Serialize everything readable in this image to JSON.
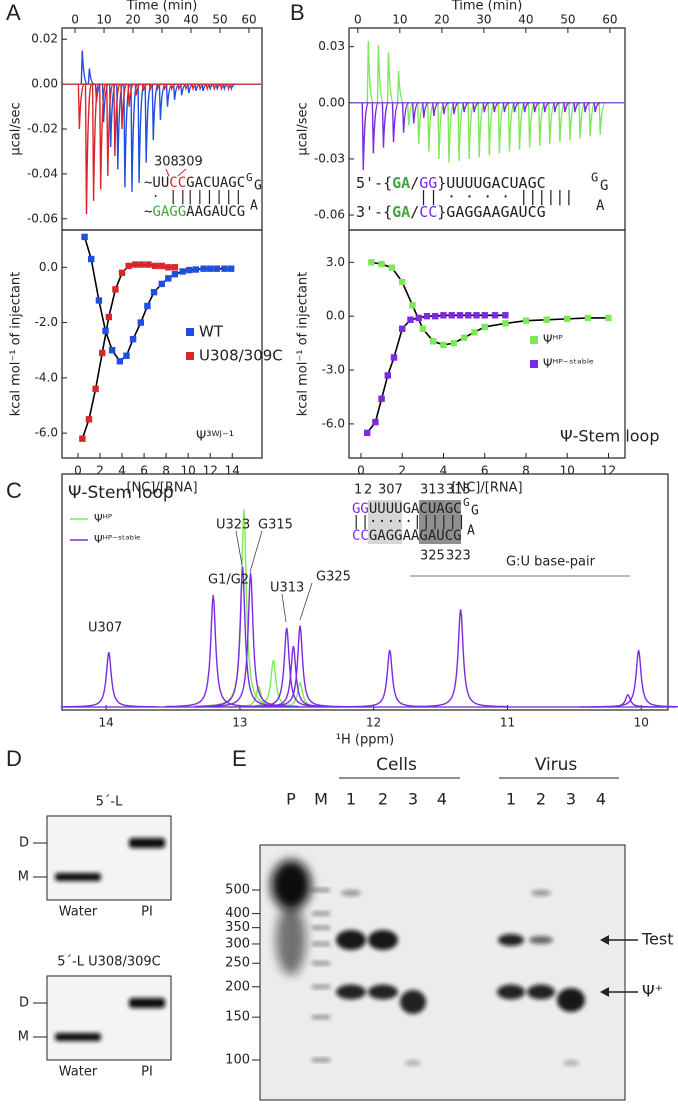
{
  "panel_labels": [
    "A",
    "B",
    "C",
    "D",
    "E"
  ],
  "chart_data": [
    {
      "type": "spikes",
      "xlabel": "Time (min)",
      "ylabel": "μcal/sec",
      "xlim": [
        -4.5,
        64.5
      ],
      "ylim": [
        -0.065,
        0.025
      ],
      "xticks": [
        0,
        10,
        20,
        30,
        40,
        50,
        60
      ],
      "yticks": [
        0.02,
        {
          "value": 0,
          "label": "0.00"
        },
        -0.02,
        -0.04,
        -0.06
      ],
      "series": [
        {
          "color": "#1f4fe0",
          "x": [
            2.5,
            4.95,
            7.4,
            9.85,
            12.3,
            14.75,
            17.2,
            19.65,
            22.1,
            24.55,
            27,
            29.45,
            31.9,
            34.35,
            36.8,
            39.25,
            41.7,
            44.15,
            46.6,
            49.05,
            51.5,
            53.95
          ],
          "values": [
            0.015,
            0.007,
            -0.008,
            -0.017,
            -0.028,
            -0.038,
            -0.046,
            -0.048,
            -0.044,
            -0.035,
            -0.025,
            -0.016,
            -0.01,
            -0.007,
            -0.005,
            -0.004,
            -0.003,
            -0.003,
            -0.002,
            -0.002,
            -0.002,
            -0.002
          ]
        },
        {
          "color": "#d8262b",
          "x": [
            1.5,
            3.95,
            6.4,
            8.85,
            11.3,
            13.75,
            16.2,
            18.65,
            21.1,
            23.55,
            26,
            28.45,
            30.9,
            33.35,
            35.8,
            38.25,
            40.7,
            43.15,
            45.6,
            48.05,
            50.5,
            52.95
          ],
          "values": [
            -0.02,
            -0.058,
            -0.052,
            -0.047,
            -0.041,
            -0.032,
            -0.02,
            -0.01,
            -0.005,
            -0.003,
            -0.002,
            -0.002,
            -0.002,
            -0.002,
            -0.002,
            -0.002,
            -0.002,
            -0.002,
            -0.002,
            -0.002,
            -0.002,
            -0.002
          ]
        }
      ]
    },
    {
      "type": "scatter",
      "xlabel": "[NC]/[RNA]",
      "ylabel": "kcal mol⁻¹ of injectant",
      "note": "Ψ³ᵂᴶ⁻¹",
      "marker": "square",
      "fit_color": "#000000",
      "xlim": [
        -1.45,
        16.7
      ],
      "ylim": [
        -6.9,
        1.35
      ],
      "xticks": [
        0,
        2,
        4,
        6,
        8,
        10,
        12,
        14
      ],
      "yticks": [
        {
          "value": 0,
          "label": "0.0"
        },
        {
          "value": -2,
          "label": "-2.0"
        },
        {
          "value": -4,
          "label": "-4.0"
        },
        {
          "value": -6,
          "label": "-6.0"
        }
      ],
      "series": [
        {
          "name": "WT",
          "color": "#1f4fe0",
          "x": [
            0.6,
            1.2,
            1.9,
            2.5,
            3.1,
            3.8,
            4.4,
            5.0,
            5.7,
            6.3,
            6.9,
            7.6,
            8.2,
            8.8,
            9.5,
            10.1,
            10.7,
            11.4,
            12.0,
            12.6,
            13.3,
            13.9
          ],
          "values": [
            1.1,
            0.3,
            -1.2,
            -2.3,
            -3.0,
            -3.4,
            -3.2,
            -2.6,
            -2.0,
            -1.4,
            -0.9,
            -0.6,
            -0.4,
            -0.25,
            -0.15,
            -0.1,
            -0.08,
            -0.05,
            -0.05,
            -0.05,
            -0.05,
            -0.05
          ]
        },
        {
          "name": "U308/309C",
          "color": "#d8262b",
          "x": [
            0.4,
            1.0,
            1.6,
            2.2,
            2.8,
            3.4,
            4.0,
            4.6,
            5.2,
            5.8,
            6.4,
            7.0,
            7.6,
            8.2,
            8.8
          ],
          "values": [
            -6.2,
            -5.5,
            -4.4,
            -3.1,
            -1.8,
            -0.8,
            -0.2,
            0.05,
            0.1,
            0.1,
            0.1,
            0.05,
            0.05,
            0,
            0
          ]
        }
      ]
    },
    {
      "type": "spikes",
      "xlabel": "Time (min)",
      "ylabel": "μcal/sec",
      "xlim": [
        -2.1,
        63.6
      ],
      "ylim": [
        -0.068,
        0.04
      ],
      "xticks": [
        0,
        10,
        20,
        30,
        40,
        50,
        60
      ],
      "yticks": [
        0.03,
        {
          "value": 0,
          "label": "0.00"
        },
        -0.03,
        -0.06
      ],
      "series": [
        {
          "color": "#7ee85a",
          "x": [
            2.5,
            4.9,
            7.3,
            9.7,
            12.1,
            14.5,
            16.9,
            19.3,
            21.7,
            24.1,
            26.5,
            28.9,
            31.3,
            33.7,
            36.1,
            38.5,
            40.9,
            43.3,
            45.7,
            48.1,
            50.5,
            52.9,
            55.3,
            57.7
          ],
          "values": [
            0.033,
            0.031,
            0.027,
            0.017,
            -0.012,
            -0.022,
            -0.026,
            -0.03,
            -0.032,
            -0.031,
            -0.03,
            -0.029,
            -0.028,
            -0.027,
            -0.026,
            -0.025,
            -0.024,
            -0.023,
            -0.022,
            -0.021,
            -0.02,
            -0.019,
            -0.018,
            -0.017
          ]
        },
        {
          "color": "#7a2be2",
          "x": [
            1.3,
            3.7,
            6.1,
            8.5,
            10.9,
            13.3,
            15.7,
            18.1,
            20.5,
            22.9,
            25.3,
            27.7,
            30.1,
            32.5,
            34.9,
            37.3,
            39.7,
            42.1,
            44.5,
            46.9,
            49.3,
            51.7,
            54.1,
            56.5
          ],
          "values": [
            -0.036,
            -0.027,
            -0.024,
            -0.021,
            -0.016,
            -0.011,
            -0.008,
            -0.007,
            -0.006,
            -0.006,
            -0.005,
            -0.005,
            -0.005,
            -0.005,
            -0.005,
            -0.005,
            -0.005,
            -0.005,
            -0.005,
            -0.005,
            -0.005,
            -0.005,
            -0.005,
            -0.005
          ]
        }
      ]
    },
    {
      "type": "scatter",
      "xlabel": "[NC]/[RNA]",
      "ylabel": "kcal mol⁻¹ of injectant",
      "note": "Ψ-Stem loop",
      "marker": "square",
      "fit_color": "#000000",
      "xlim": [
        -0.58,
        12.8
      ],
      "ylim": [
        -7.9,
        4.8
      ],
      "xticks": [
        0,
        2,
        4,
        6,
        8,
        10,
        12
      ],
      "yticks": [
        {
          "value": 3,
          "label": "3.0"
        },
        {
          "value": 0,
          "label": "0.0"
        },
        {
          "value": -3,
          "label": "-3.0"
        },
        {
          "value": -6,
          "label": "-6.0"
        }
      ],
      "series": [
        {
          "name": "Ψᴴᴾ",
          "color": "#7ee85a",
          "x": [
            0.5,
            1.0,
            1.5,
            2.0,
            2.5,
            3.0,
            3.5,
            4.0,
            4.5,
            5.0,
            5.5,
            6.0,
            7.0,
            8.0,
            9.0,
            10.0,
            11.0,
            12.0
          ],
          "values": [
            3.0,
            2.9,
            2.7,
            1.9,
            0.6,
            -0.7,
            -1.4,
            -1.6,
            -1.5,
            -1.2,
            -0.9,
            -0.6,
            -0.4,
            -0.25,
            -0.2,
            -0.15,
            -0.1,
            -0.1
          ]
        },
        {
          "name": "Ψᴴᴾ⁻ˢᵗᵃᵇˡᵉ",
          "color": "#7a2be2",
          "x": [
            0.3,
            0.7,
            1.0,
            1.3,
            1.6,
            2.0,
            2.4,
            2.8,
            3.2,
            3.6,
            4.0,
            4.4,
            4.8,
            5.2,
            5.6,
            6.0,
            6.5,
            7.0
          ],
          "values": [
            -6.5,
            -5.9,
            -4.6,
            -3.3,
            -2.3,
            -0.7,
            -0.2,
            -0.1,
            0,
            0,
            0.05,
            0.05,
            0.05,
            0.05,
            0.05,
            0.05,
            0.05,
            0.05
          ]
        }
      ]
    },
    {
      "type": "spectrum",
      "title": "Ψ-Stem loop",
      "xlabel": "¹H (ppm)",
      "xlim": [
        14.33,
        9.8
      ],
      "ylim": [
        0,
        116
      ],
      "xticks": [
        14,
        13,
        12,
        11,
        10
      ],
      "series": [
        {
          "name": "Ψᴴᴾ",
          "color": "#7ee85a",
          "x": [
            12.97,
            12.86,
            12.75,
            12.55
          ],
          "values": [
            97,
            10,
            23,
            12
          ]
        },
        {
          "name": "Ψᴴᴾ⁻ˢᵗᵃᵇˡᵉ",
          "color": "#7a2be2",
          "x": [
            13.98,
            13.2,
            12.98,
            12.92,
            12.65,
            12.6,
            12.55,
            11.88,
            11.35,
            10.1,
            10.02
          ],
          "values": [
            27,
            55,
            69,
            66,
            39,
            30,
            40,
            28,
            48,
            6,
            28
          ]
        }
      ],
      "annotations": [
        {
          "text": "U307",
          "color": "#222222"
        },
        {
          "text": "G1/G2",
          "color": "#d8262b"
        },
        {
          "text": "U323",
          "color": "#222222"
        },
        {
          "text": "G315",
          "color": "#222222"
        },
        {
          "text": "U313",
          "color": "#222222"
        },
        {
          "text": "G325",
          "color": "#222222"
        },
        {
          "text": "G:U base-pair",
          "color": "#222222"
        }
      ]
    }
  ],
  "structures": {
    "A": {
      "numbers": [
        "308",
        "309"
      ],
      "top": [
        {
          "text": "~UU",
          "color": "#222222"
        },
        {
          "text": "CC",
          "color": "#d8262b"
        },
        {
          "text": "GACUAGC",
          "color": "#222222"
        }
      ],
      "pairs": [
        {
          "text": "·",
          "color": "#222222"
        },
        {
          "text": "||",
          "color": "#d8262b"
        },
        {
          "text": "||||||",
          "color": "#222222"
        }
      ],
      "bottom": [
        {
          "text": "~",
          "color": "#222222"
        },
        {
          "text": "GAGG",
          "color": "#3fa83a"
        },
        {
          "text": "AAGAUCG",
          "color": "#222222"
        }
      ],
      "loop": [
        "G",
        "G",
        "A"
      ]
    },
    "B": {
      "top": [
        {
          "text": "5'-{",
          "color": "#222222"
        },
        {
          "text": "GA",
          "color": "#3fa83a"
        },
        {
          "text": "/",
          "color": "#222222"
        },
        {
          "text": "GG",
          "color": "#7a2be2"
        },
        {
          "text": "}UUUUGACUAGC",
          "color": "#222222"
        }
      ],
      "pairs": [
        {
          "text": "||",
          "color": "#7a2be2"
        },
        {
          "text": "· · · · ||||||",
          "color": "#222222"
        }
      ],
      "bottom": [
        {
          "text": "3'-{",
          "color": "#222222"
        },
        {
          "text": "GA",
          "color": "#3fa83a"
        },
        {
          "text": "/",
          "color": "#222222"
        },
        {
          "text": "CC",
          "color": "#7a2be2"
        },
        {
          "text": "}GAGGAAGAUCG",
          "color": "#222222"
        }
      ],
      "loop": [
        "G",
        "G",
        "A"
      ]
    },
    "C": {
      "numbers_top": [
        {
          "text": "1",
          "color": "#d8262b"
        },
        {
          "text": "2",
          "color": "#d8262b"
        },
        {
          "text": "307",
          "color": "#222222"
        },
        {
          "text": "313",
          "color": "#222222"
        },
        {
          "text": "315",
          "color": "#222222"
        }
      ],
      "top": [
        {
          "text": "GG",
          "color": "#7a2be2"
        },
        {
          "text": "UUUUGACUAGC",
          "color": "#222222"
        }
      ],
      "pairs": [
        {
          "text": "||",
          "color": "#7a2be2"
        },
        {
          "text": "·····||||||",
          "color": "#222222"
        }
      ],
      "bottom": [
        {
          "text": "CC",
          "color": "#7a2be2"
        },
        {
          "text": "GAGGAAGAUCG",
          "color": "#222222"
        }
      ],
      "numbers_bottom": [
        "325",
        "323"
      ],
      "loop": [
        "G",
        "G",
        "A"
      ]
    }
  },
  "gels": {
    "D": [
      {
        "title": "5´-L",
        "bands": [
          "D",
          "M"
        ],
        "lanes": [
          "Water",
          "PI"
        ]
      },
      {
        "title": "5´-L U308/309C",
        "bands": [
          "D",
          "M"
        ],
        "lanes": [
          "Water",
          "PI"
        ]
      }
    ],
    "E": {
      "lanes": [
        "P",
        "M"
      ],
      "groups": [
        {
          "name": "Cells",
          "lanes": [
            "1",
            "2",
            "3",
            "4"
          ]
        },
        {
          "name": "Virus",
          "lanes": [
            "1",
            "2",
            "3",
            "4"
          ]
        }
      ],
      "ladder": [
        500,
        400,
        350,
        300,
        250,
        200,
        150,
        100
      ],
      "arrows": [
        "Test",
        "Ψ⁺"
      ]
    }
  }
}
